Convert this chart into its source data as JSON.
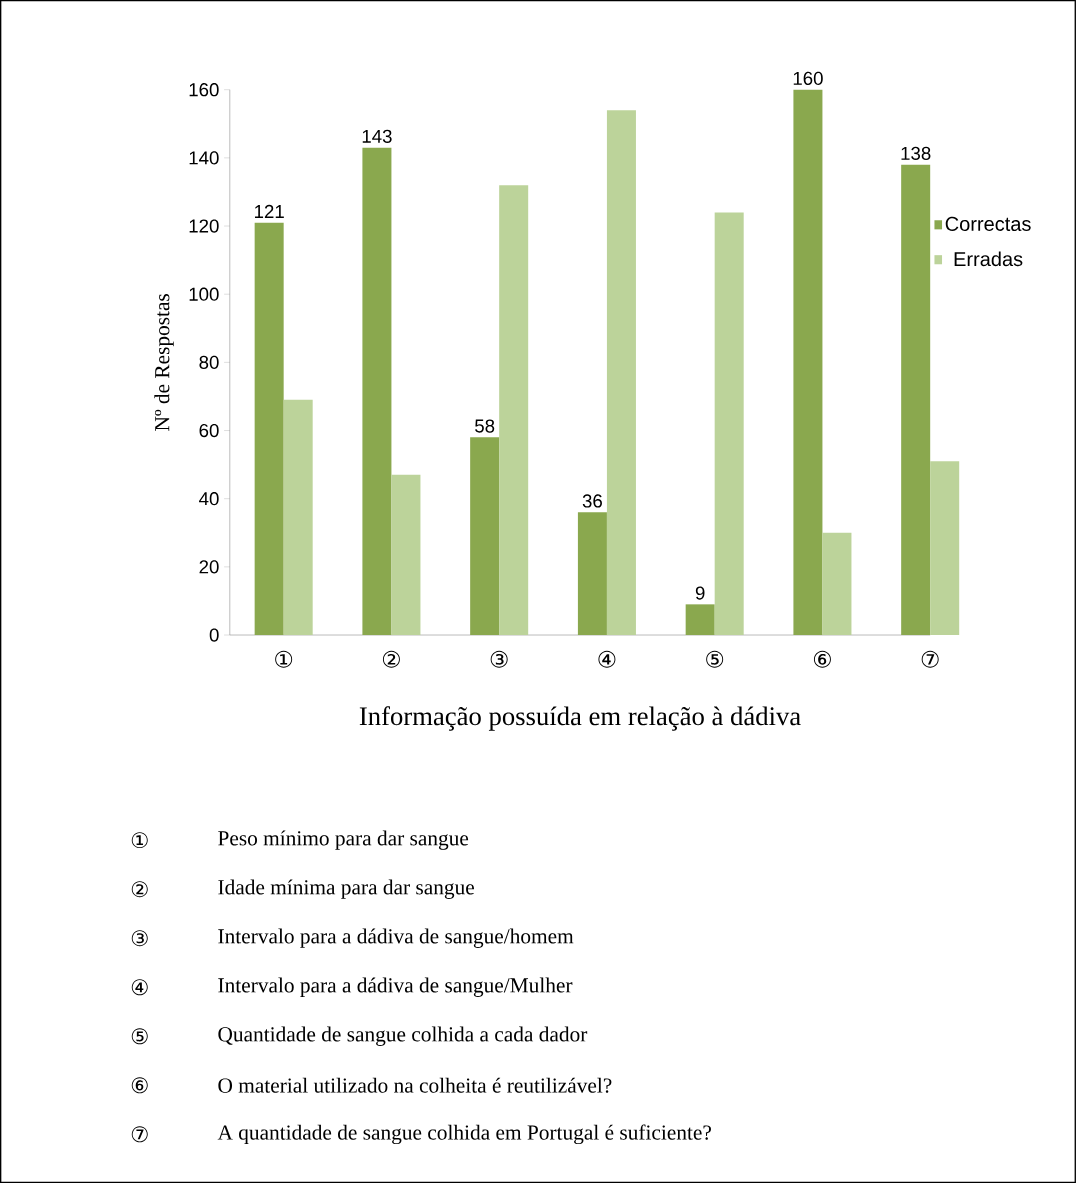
{
  "chart_data": {
    "type": "bar",
    "xlabel": "Informação possuída em relação à dádiva",
    "ylabel": "Nº de Respostas",
    "categories": [
      "①",
      "②",
      "③",
      "④",
      "⑤",
      "⑥",
      "⑦"
    ],
    "series": [
      {
        "name": "Correctas",
        "color": "#8aa84e",
        "values": [
          121,
          143,
          58,
          36,
          9,
          160,
          138
        ],
        "value_labels": [
          "121",
          "143",
          "58",
          "36",
          "9",
          "160",
          "138"
        ]
      },
      {
        "name": "Erradas",
        "color": "#bcd39a",
        "values": [
          69,
          47,
          132,
          154,
          124,
          30,
          51
        ]
      }
    ],
    "ylim": [
      0,
      160
    ],
    "yticks": [
      0,
      20,
      40,
      60,
      80,
      100,
      120,
      140,
      160
    ],
    "legend": "right",
    "annotations": [
      "①",
      "Peso mínimo para dar sangue",
      "②",
      "Idade mínima para dar sangue",
      "③",
      "Intervalo para a dádiva de sangue/homem",
      "④",
      "Intervalo para a dádiva de sangue/Mulher",
      "⑤",
      "Quantidade de sangue colhida a cada dador",
      "⑥",
      "O material utilizado na colheita é reutilizável?",
      "⑦",
      "A quantidade de sangue colhida em Portugal é suficiente?"
    ]
  }
}
